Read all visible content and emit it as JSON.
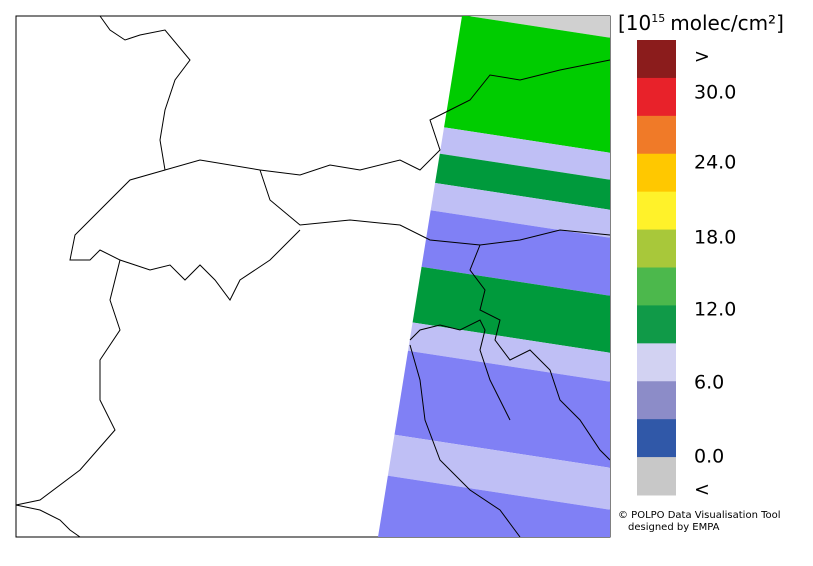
{
  "colorbar": {
    "title": {
      "prefix": "[10",
      "exponent": "15",
      "unit": "molec/cm²]"
    },
    "colors": [
      "#8b1c1c",
      "#e8222a",
      "#f07a28",
      "#ffc800",
      "#fff22a",
      "#a8c83a",
      "#4cb84c",
      "#109a48",
      "#d2d2f2",
      "#8c8cc8",
      "#3058a8",
      "#c8c8c8"
    ],
    "labels": [
      ">",
      "30.0",
      "24.0",
      "18.0",
      "12.0",
      "6.0",
      "0.0",
      "<"
    ]
  },
  "credits": [
    "© POLPO Data Visualisation Tool",
    "designed by EMPA"
  ]
}
